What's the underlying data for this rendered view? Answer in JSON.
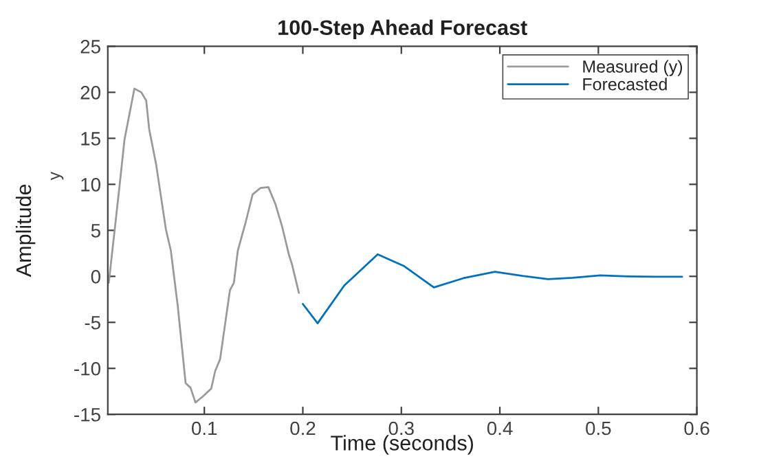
{
  "chart_data": {
    "type": "line",
    "title": "100-Step Ahead Forecast",
    "xlabel": "Time (seconds)",
    "ylabel": "Amplitude",
    "annotations": [
      "y"
    ],
    "xlim": [
      0.002,
      0.6
    ],
    "ylim": [
      -15,
      25
    ],
    "xticks": [
      0.1,
      0.2,
      0.3,
      0.4,
      0.5,
      0.6
    ],
    "yticks": [
      -15,
      -10,
      -5,
      0,
      5,
      10,
      15,
      20,
      25
    ],
    "grid": false,
    "legend": "top right",
    "line_style": "solid",
    "marker": "none",
    "series": [
      {
        "name": "Measured (y)",
        "color": "#9a9a9a",
        "x": [
          0.003,
          0.014,
          0.019,
          0.029,
          0.036,
          0.041,
          0.044,
          0.051,
          0.061,
          0.066,
          0.073,
          0.081,
          0.086,
          0.091,
          0.098,
          0.107,
          0.111,
          0.116,
          0.126,
          0.13,
          0.134,
          0.142,
          0.149,
          0.157,
          0.165,
          0.172,
          0.179,
          0.186,
          0.189,
          0.196
        ],
        "values": [
          -0.7,
          9.9,
          14.9,
          20.4,
          20.0,
          19.1,
          16.0,
          12.2,
          5.1,
          2.8,
          -3.2,
          -11.6,
          -12.1,
          -13.7,
          -13.1,
          -12.2,
          -10.3,
          -9.0,
          -1.5,
          -0.7,
          2.8,
          5.9,
          8.9,
          9.6,
          9.7,
          7.9,
          5.4,
          2.3,
          1.3,
          -1.8
        ]
      },
      {
        "name": "Forecasted",
        "color": "#0072bd",
        "x": [
          0.2,
          0.215,
          0.242,
          0.276,
          0.303,
          0.333,
          0.363,
          0.395,
          0.423,
          0.449,
          0.474,
          0.502,
          0.53,
          0.558,
          0.585
        ],
        "values": [
          -3.0,
          -5.1,
          -1.0,
          2.4,
          1.1,
          -1.2,
          -0.2,
          0.5,
          0.05,
          -0.3,
          -0.15,
          0.1,
          0.0,
          -0.05,
          -0.05
        ]
      }
    ]
  }
}
